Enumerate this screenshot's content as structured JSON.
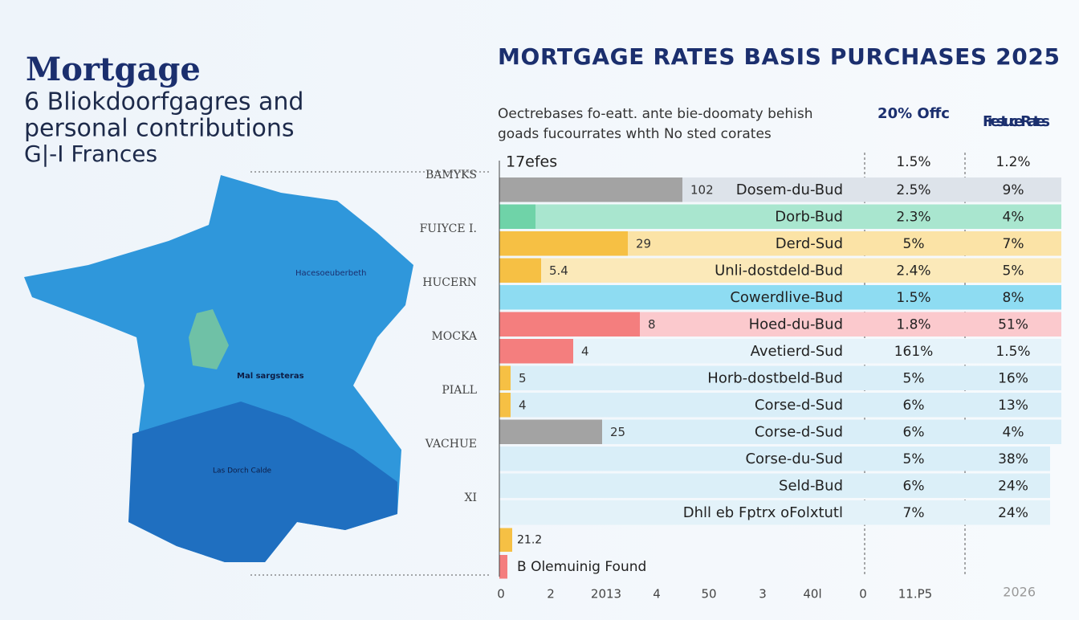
{
  "header": {
    "title": "Mortgage",
    "subtitle": [
      "6 Bliokdoorfgagres and",
      "personal contributions",
      "G|-I Frances"
    ]
  },
  "map": {
    "labels": [
      "Hacesoeuberbeth",
      "Mal sargsteras",
      "Las Dorch Calde"
    ],
    "side_labels": [
      "BAMYKS",
      "FUIYCE I.",
      "HUCERN",
      "MOCKA",
      "PIALL",
      "VACHUE",
      "XI"
    ]
  },
  "table": {
    "title": "Mortgage rates basis purchases 2025",
    "description": [
      "Oectrebases fo-eatt. ante bie-doomaty behish",
      "goads fucourrates whth No sted corates"
    ],
    "headers": [
      "20% Offc",
      "Frestuce Rates"
    ],
    "first_row": {
      "label": "17efes",
      "cells": [
        "1.5%",
        "1.2%"
      ]
    },
    "rows": [
      {
        "bar_label": "102",
        "label": "Dosem-du-Bud",
        "cells": [
          "2.5%",
          "9%"
        ],
        "bar_color": "#a3a3a3",
        "row_color": "#dde3ea"
      },
      {
        "label": "Dorb-Bud",
        "cells": [
          "2.3%",
          "4%"
        ],
        "bar_color": "#6fd3a8",
        "row_color": "#a9e6cf"
      },
      {
        "bar_label": "29",
        "label": "Derd-Sud",
        "cells": [
          "5%",
          "7%"
        ],
        "bar_color": "#f6c044",
        "row_color": "#fbe3a6"
      },
      {
        "bar_label": "5.4",
        "label": "Unli-dostdeld-Bud",
        "cells": [
          "2.4%",
          "5%"
        ],
        "bar_color": "#f6c044",
        "row_color": "#fbe9b9"
      },
      {
        "label": "Cowerdlive-Bud",
        "cells": [
          "1.5%",
          "8%"
        ],
        "bar_color": "#5fd0ee",
        "row_color": "#8edcf2"
      },
      {
        "bar_label": "8",
        "label": "Hoed-du-Bud",
        "cells": [
          "1.8%",
          "51%"
        ],
        "bar_color": "#f47e7e",
        "row_color": "#fbc9cd"
      },
      {
        "bar_label": "4",
        "label": "Avetierd-Sud",
        "cells": [
          "161%",
          "1.5%"
        ],
        "bar_color": "#f47e7e",
        "row_color": "#e6f3fa"
      },
      {
        "bar_label": "5",
        "label": "Horb-dostbeld-Bud",
        "cells": [
          "5%",
          "16%"
        ],
        "bar_color": "#f6c044",
        "row_color": "#d9eef8"
      },
      {
        "bar_label": "4",
        "label": "Corse-d-Sud",
        "cells": [
          "6%",
          "13%"
        ],
        "bar_color": "#f6c044",
        "row_color": "#d9eef8"
      },
      {
        "bar_label": "25",
        "label": "Corse-d-Sud",
        "cells": [
          "6%",
          "4%"
        ],
        "bar_color": "#a3a3a3",
        "row_color": "#d9eef8"
      },
      {
        "label": "Corse-du-Sud",
        "cells": [
          "5%",
          "38%"
        ],
        "row_color": "#d9eef8"
      },
      {
        "label": "Seld-Bud",
        "cells": [
          "6%",
          "24%"
        ],
        "row_color": "#dbeff8"
      },
      {
        "label": "Dhll eb Fptrx oFolxtutl",
        "cells": [
          "7%",
          "24%"
        ],
        "row_color": "#e3f2f9"
      }
    ],
    "footer_rows": [
      {
        "bar_label": "21.2",
        "bar_color": "#f6c044"
      },
      {
        "bar_label": "B Olemuinig Found",
        "bar_color": "#f47e7e"
      }
    ],
    "axis_labels": [
      "0",
      "2",
      "2013",
      "4",
      "50",
      "3",
      "40l",
      "0",
      "11.P5"
    ],
    "watermark": "2026"
  }
}
